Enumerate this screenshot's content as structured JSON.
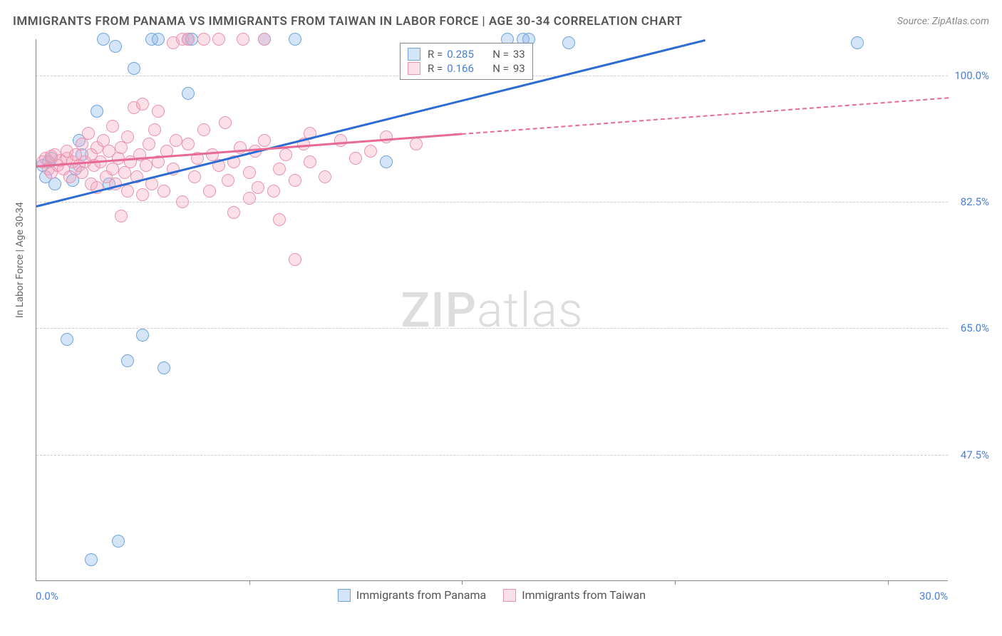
{
  "title": "IMMIGRANTS FROM PANAMA VS IMMIGRANTS FROM TAIWAN IN LABOR FORCE | AGE 30-34 CORRELATION CHART",
  "source_label": "Source:",
  "source_value": "ZipAtlas.com",
  "y_axis_label": "In Labor Force | Age 30-34",
  "watermark_zip": "ZIP",
  "watermark_atlas": "atlas",
  "chart": {
    "type": "scatter",
    "x_range": [
      0,
      30
    ],
    "y_range": [
      30,
      105
    ],
    "x_ticks": [
      0,
      30
    ],
    "x_tick_labels": [
      "0.0%",
      "30.0%"
    ],
    "x_minor_ticks": [
      7,
      14,
      21,
      28
    ],
    "y_ticks": [
      47.5,
      65.0,
      82.5,
      100.0
    ],
    "y_tick_labels": [
      "47.5%",
      "65.0%",
      "82.5%",
      "100.0%"
    ],
    "background_color": "#ffffff",
    "grid_color": "#cccccc",
    "axis_color": "#888888",
    "series": [
      {
        "name": "Immigrants from Panama",
        "color_fill": "rgba(135,180,235,0.35)",
        "color_stroke": "#6fa4de",
        "trend_color": "#2d6bd4",
        "marker_radius": 9,
        "r_value": "0.285",
        "n_value": "33",
        "trend": {
          "x1": 0,
          "y1": 82.0,
          "x2": 22,
          "y2": 105.0
        },
        "points": [
          [
            0.2,
            87.5
          ],
          [
            0.3,
            86.0
          ],
          [
            0.5,
            88.5
          ],
          [
            0.6,
            85.0
          ],
          [
            0.4,
            88.0
          ],
          [
            1.0,
            63.5
          ],
          [
            1.2,
            85.5
          ],
          [
            1.3,
            87.0
          ],
          [
            1.4,
            91.0
          ],
          [
            1.5,
            89.0
          ],
          [
            1.8,
            33.0
          ],
          [
            2.0,
            95.0
          ],
          [
            2.2,
            105.0
          ],
          [
            2.4,
            85.0
          ],
          [
            2.6,
            104.0
          ],
          [
            2.7,
            35.5
          ],
          [
            3.0,
            60.5
          ],
          [
            3.2,
            101.0
          ],
          [
            3.5,
            64.0
          ],
          [
            3.8,
            105.0
          ],
          [
            4.0,
            105.0
          ],
          [
            4.2,
            59.5
          ],
          [
            5.0,
            97.5
          ],
          [
            5.0,
            105.0
          ],
          [
            5.1,
            105.0
          ],
          [
            7.5,
            105.0
          ],
          [
            8.5,
            105.0
          ],
          [
            11.5,
            88.0
          ],
          [
            15.5,
            105.0
          ],
          [
            16.0,
            105.0
          ],
          [
            16.2,
            105.0
          ],
          [
            17.5,
            104.5
          ],
          [
            27.0,
            104.5
          ]
        ]
      },
      {
        "name": "Immigrants from Taiwan",
        "color_fill": "rgba(245,165,190,0.35)",
        "color_stroke": "#e994b0",
        "trend_color": "#e76a94",
        "marker_radius": 9,
        "r_value": "0.166",
        "n_value": "93",
        "trend_solid": {
          "x1": 0,
          "y1": 87.5,
          "x2": 14,
          "y2": 92.0
        },
        "trend_dashed": {
          "x1": 14,
          "y1": 92.0,
          "x2": 30,
          "y2": 97.0
        },
        "points": [
          [
            0.2,
            88.0
          ],
          [
            0.3,
            88.5
          ],
          [
            0.4,
            87.0
          ],
          [
            0.5,
            88.8
          ],
          [
            0.5,
            86.5
          ],
          [
            0.6,
            89.0
          ],
          [
            0.7,
            87.5
          ],
          [
            0.8,
            88.2
          ],
          [
            0.9,
            87.0
          ],
          [
            1.0,
            88.5
          ],
          [
            1.0,
            89.5
          ],
          [
            1.1,
            86.0
          ],
          [
            1.2,
            88.0
          ],
          [
            1.3,
            89.0
          ],
          [
            1.4,
            87.5
          ],
          [
            1.5,
            90.5
          ],
          [
            1.5,
            86.5
          ],
          [
            1.6,
            88.0
          ],
          [
            1.7,
            92.0
          ],
          [
            1.8,
            85.0
          ],
          [
            1.8,
            89.0
          ],
          [
            1.9,
            87.5
          ],
          [
            2.0,
            90.0
          ],
          [
            2.0,
            84.5
          ],
          [
            2.1,
            88.0
          ],
          [
            2.2,
            91.0
          ],
          [
            2.3,
            86.0
          ],
          [
            2.4,
            89.5
          ],
          [
            2.5,
            87.0
          ],
          [
            2.5,
            93.0
          ],
          [
            2.6,
            85.0
          ],
          [
            2.7,
            88.5
          ],
          [
            2.8,
            80.5
          ],
          [
            2.8,
            90.0
          ],
          [
            2.9,
            86.5
          ],
          [
            3.0,
            91.5
          ],
          [
            3.0,
            84.0
          ],
          [
            3.1,
            88.0
          ],
          [
            3.2,
            95.5
          ],
          [
            3.3,
            86.0
          ],
          [
            3.4,
            89.0
          ],
          [
            3.5,
            96.0
          ],
          [
            3.5,
            83.5
          ],
          [
            3.6,
            87.5
          ],
          [
            3.7,
            90.5
          ],
          [
            3.8,
            85.0
          ],
          [
            3.9,
            92.5
          ],
          [
            4.0,
            88.0
          ],
          [
            4.0,
            95.0
          ],
          [
            4.2,
            84.0
          ],
          [
            4.3,
            89.5
          ],
          [
            4.5,
            104.5
          ],
          [
            4.5,
            87.0
          ],
          [
            4.6,
            91.0
          ],
          [
            4.8,
            105.0
          ],
          [
            4.8,
            82.5
          ],
          [
            5.0,
            90.5
          ],
          [
            5.0,
            105.0
          ],
          [
            5.2,
            86.0
          ],
          [
            5.3,
            88.5
          ],
          [
            5.5,
            92.5
          ],
          [
            5.5,
            105.0
          ],
          [
            5.7,
            84.0
          ],
          [
            5.8,
            89.0
          ],
          [
            6.0,
            87.5
          ],
          [
            6.0,
            105.0
          ],
          [
            6.2,
            93.5
          ],
          [
            6.3,
            85.5
          ],
          [
            6.5,
            88.0
          ],
          [
            6.5,
            81.0
          ],
          [
            6.7,
            90.0
          ],
          [
            6.8,
            105.0
          ],
          [
            7.0,
            86.5
          ],
          [
            7.0,
            83.0
          ],
          [
            7.2,
            89.5
          ],
          [
            7.3,
            84.5
          ],
          [
            7.5,
            91.0
          ],
          [
            7.5,
            105.0
          ],
          [
            7.8,
            84.0
          ],
          [
            8.0,
            87.0
          ],
          [
            8.0,
            80.0
          ],
          [
            8.2,
            89.0
          ],
          [
            8.5,
            85.5
          ],
          [
            8.5,
            74.5
          ],
          [
            8.8,
            90.5
          ],
          [
            9.0,
            88.0
          ],
          [
            9.0,
            92.0
          ],
          [
            9.5,
            86.0
          ],
          [
            10.0,
            91.0
          ],
          [
            10.5,
            88.5
          ],
          [
            11.0,
            89.5
          ],
          [
            11.5,
            91.5
          ],
          [
            12.5,
            90.5
          ]
        ]
      }
    ]
  }
}
